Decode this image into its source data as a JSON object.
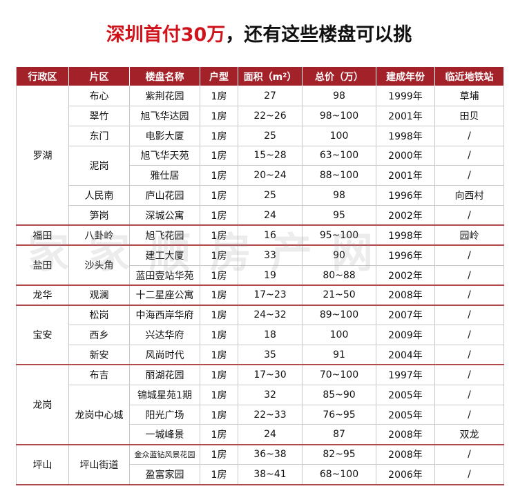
{
  "title": {
    "highlight": "深圳首付30万",
    "rest": "，还有这些楼盘可以挑"
  },
  "watermark": "家家顺房产网",
  "table": {
    "header": [
      "行政区",
      "片区",
      "楼盘名称",
      "户型",
      "面积（m²）",
      "总价（万）",
      "建成年份",
      "临近地铁站"
    ],
    "districts": [
      {
        "name": "罗湖",
        "areas": [
          {
            "name": "布心",
            "estates": [
              [
                "紫荆花园",
                "1房",
                "27",
                "98",
                "1999年",
                "草埔"
              ]
            ]
          },
          {
            "name": "翠竹",
            "estates": [
              [
                "旭飞华达园",
                "1房",
                "22~26",
                "98~100",
                "2001年",
                "田贝"
              ]
            ]
          },
          {
            "name": "东门",
            "estates": [
              [
                "电影大厦",
                "1房",
                "25",
                "100",
                "1998年",
                "/"
              ]
            ]
          },
          {
            "name": "泥岗",
            "estates": [
              [
                "旭飞华天苑",
                "1房",
                "15~28",
                "63~100",
                "2000年",
                "/"
              ],
              [
                "雅仕居",
                "1房",
                "20~24",
                "88~100",
                "2001年",
                "/"
              ]
            ]
          },
          {
            "name": "人民南",
            "estates": [
              [
                "庐山花园",
                "1房",
                "25",
                "98",
                "1996年",
                "向西村"
              ]
            ]
          },
          {
            "name": "笋岗",
            "estates": [
              [
                "深城公寓",
                "1房",
                "24",
                "95",
                "2002年",
                "/"
              ]
            ]
          }
        ]
      },
      {
        "name": "福田",
        "areas": [
          {
            "name": "八卦岭",
            "estates": [
              [
                "旭飞花园",
                "1房",
                "16",
                "95~100",
                "1998年",
                "园岭"
              ]
            ]
          }
        ]
      },
      {
        "name": "盐田",
        "areas": [
          {
            "name": "沙头角",
            "estates": [
              [
                "建工大厦",
                "1房",
                "33",
                "90",
                "1996年",
                "/"
              ],
              [
                "蓝田壹站华苑",
                "1房",
                "19",
                "80~88",
                "2002年",
                "/"
              ]
            ]
          }
        ]
      },
      {
        "name": "龙华",
        "areas": [
          {
            "name": "观澜",
            "estates": [
              [
                "十二星座公寓",
                "1房",
                "17~23",
                "21~50",
                "2008年",
                "/"
              ]
            ]
          }
        ]
      },
      {
        "name": "宝安",
        "areas": [
          {
            "name": "松岗",
            "estates": [
              [
                "中海西岸华府",
                "1房",
                "24~32",
                "89~100",
                "2007年",
                "/"
              ]
            ]
          },
          {
            "name": "西乡",
            "estates": [
              [
                "兴达华府",
                "1房",
                "18",
                "100",
                "2009年",
                "/"
              ]
            ]
          },
          {
            "name": "新安",
            "estates": [
              [
                "风尚时代",
                "1房",
                "35",
                "91",
                "2004年",
                "/"
              ]
            ]
          }
        ]
      },
      {
        "name": "龙岗",
        "areas": [
          {
            "name": "布吉",
            "estates": [
              [
                "丽湖花园",
                "1房",
                "17~30",
                "70~100",
                "1997年",
                "/"
              ]
            ]
          },
          {
            "name": "龙岗中心城",
            "estates": [
              [
                "锦城星苑1期",
                "1房",
                "32",
                "85~90",
                "2005年",
                "/"
              ],
              [
                "阳光广场",
                "1房",
                "22~33",
                "76~95",
                "2005年",
                "/"
              ],
              [
                "一城峰景",
                "1房",
                "24",
                "87",
                "2008年",
                "双龙"
              ]
            ]
          }
        ]
      },
      {
        "name": "坪山",
        "areas": [
          {
            "name": "坪山街道",
            "estates": [
              [
                "金众蓝钻风景花园",
                "1房",
                "36~38",
                "82~95",
                "2008年",
                "/"
              ],
              [
                "盈富家园",
                "1房",
                "38~41",
                "68~100",
                "2006年",
                "/"
              ]
            ]
          }
        ]
      }
    ]
  }
}
